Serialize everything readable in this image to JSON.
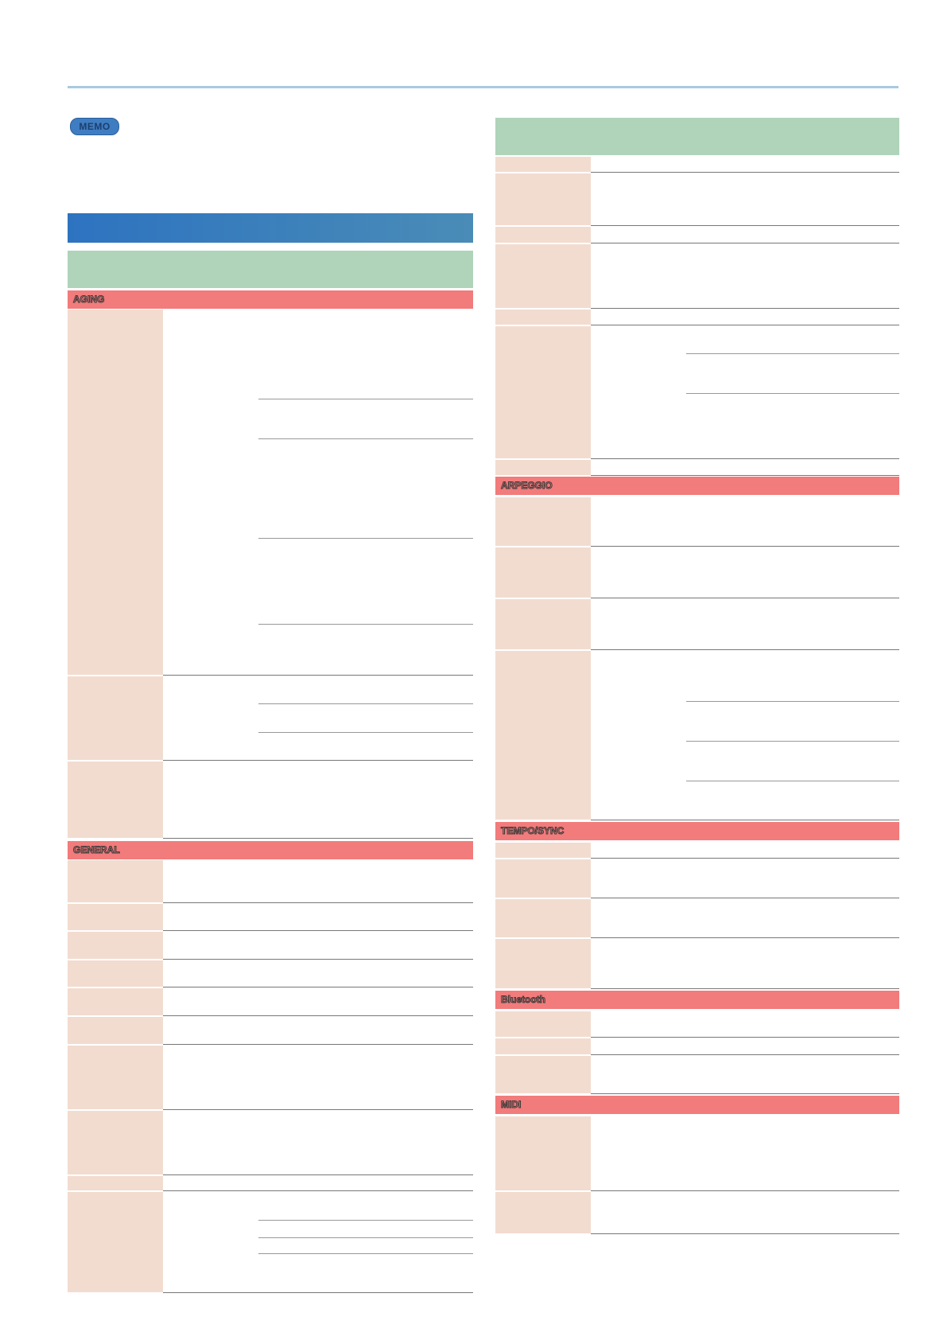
{
  "memo": {
    "label": "MEMO"
  },
  "sections": {
    "aging": "AGING",
    "general": "GENERAL",
    "arpeggio": "ARPEGGIO",
    "tempo_sync": "TEMPO/SYNC",
    "bluetooth": "Bluetooth",
    "midi": "MIDI"
  },
  "colors": {
    "accent_blue": "#2d73c0",
    "header_green": "#afd4ba",
    "section_red": "#f27b7b",
    "name_cell": "#f2dcd0"
  }
}
